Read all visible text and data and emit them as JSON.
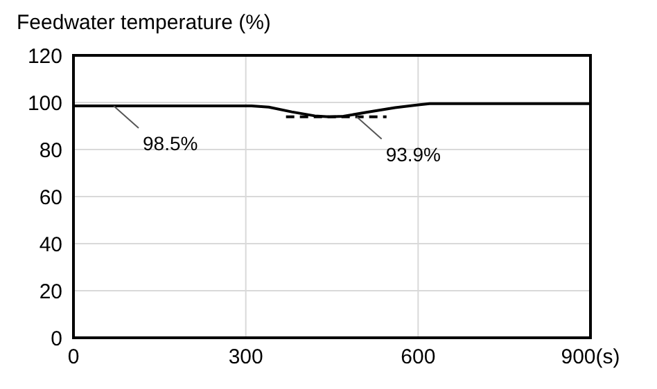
{
  "chart_data": {
    "type": "line",
    "title": "Feedwater temperature (%)",
    "series": [
      {
        "color": "#000000",
        "x": [
          0,
          310,
          340,
          380,
          420,
          445,
          470,
          510,
          560,
          600,
          620,
          900
        ],
        "values": [
          98.5,
          98.5,
          98,
          96,
          94.3,
          93.9,
          94.1,
          95.8,
          97.8,
          99,
          99.5,
          99.5
        ]
      },
      {
        "color": "#000000",
        "line_style": "dashed",
        "x": [
          370,
          545
        ],
        "values": [
          93.9,
          93.9
        ]
      }
    ],
    "xlim": [
      0,
      900
    ],
    "xticks": [
      0,
      300,
      600,
      {
        "value": 900,
        "label": "900(s)"
      }
    ],
    "ylim": [
      0,
      120
    ],
    "yticks": [
      0,
      20,
      40,
      60,
      80,
      100,
      120
    ],
    "grid": true,
    "marker": "none",
    "annotations": [
      {
        "text": "98.5%",
        "x": 70,
        "y": 98.5
      },
      {
        "text": "93.9%",
        "x": 493,
        "y": 93.9
      }
    ]
  }
}
